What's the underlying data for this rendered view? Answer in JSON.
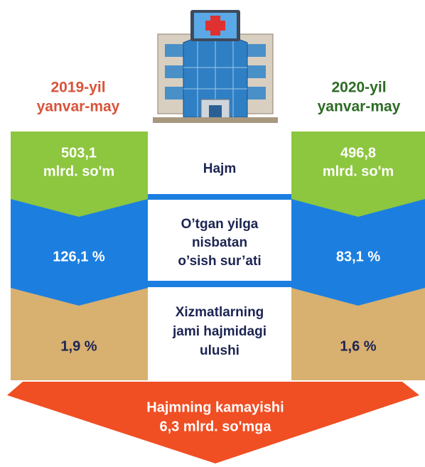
{
  "left": {
    "year": "2019-yil",
    "period": "yanvar-may",
    "volume": [
      "503,1",
      "mlrd. so'm"
    ],
    "growth": "126,1 %",
    "share": "1,9 %"
  },
  "right": {
    "year": "2020-yil",
    "period": "yanvar-may",
    "volume": [
      "496,8",
      "mlrd. so'm"
    ],
    "growth": "83,1 %",
    "share": "1,6 %"
  },
  "rows": [
    [
      "Hajm"
    ],
    [
      "O’tgan yilga",
      "nisbatan",
      "o’sish sur’ati"
    ],
    [
      "Xizmatlarning",
      "jami hajmidagi",
      "ulushi"
    ]
  ],
  "footer": [
    "Hajmning kamayishi",
    "6,3 mlrd. so'mga"
  ]
}
